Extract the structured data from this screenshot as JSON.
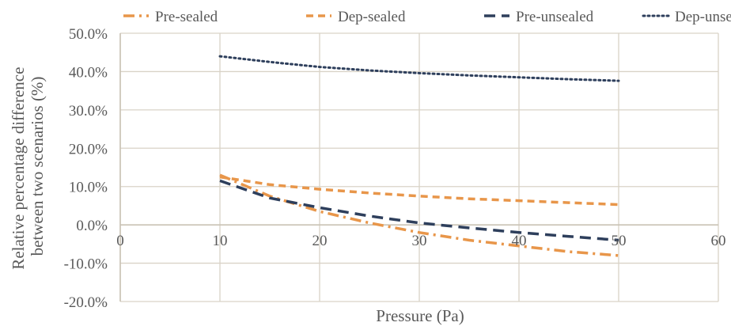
{
  "chart_data": {
    "type": "line",
    "xlabel": "Pressure (Pa)",
    "ylabel_lines": [
      "Relative percentage difference",
      "between two scenarios (%)"
    ],
    "xlim": [
      0,
      60
    ],
    "ylim": [
      -20,
      50
    ],
    "x_ticks": [
      0,
      10,
      20,
      30,
      40,
      50,
      60
    ],
    "y_ticks": [
      -20,
      -10,
      0,
      10,
      20,
      30,
      40,
      50
    ],
    "x_tick_labels": [
      "0",
      "10",
      "20",
      "30",
      "40",
      "50",
      "60"
    ],
    "y_tick_labels": [
      "-20.0%",
      "-10.0%",
      "0.0%",
      "10.0%",
      "20.0%",
      "30.0%",
      "40.0%",
      "50.0%"
    ],
    "grid": true,
    "legend_position": "top",
    "series": [
      {
        "name": "Pre-sealed",
        "color": "#e8964a",
        "dash": "dash-dot",
        "x": [
          10,
          15,
          20,
          25,
          30,
          35,
          40,
          45,
          50
        ],
        "y": [
          13.0,
          7.5,
          3.5,
          0.5,
          -2.0,
          -4.0,
          -5.5,
          -7.0,
          -8.0
        ]
      },
      {
        "name": "Dep-sealed",
        "color": "#e8964a",
        "dash": "dash",
        "x": [
          10,
          15,
          20,
          25,
          30,
          35,
          40,
          45,
          50
        ],
        "y": [
          12.5,
          10.5,
          9.3,
          8.3,
          7.5,
          6.8,
          6.3,
          5.8,
          5.3
        ]
      },
      {
        "name": "Pre-unsealed",
        "color": "#2e3f5c",
        "dash": "long-dash",
        "x": [
          10,
          15,
          20,
          25,
          30,
          35,
          40,
          45,
          50
        ],
        "y": [
          11.5,
          7.0,
          4.5,
          2.3,
          0.5,
          -0.8,
          -2.0,
          -3.0,
          -4.0
        ]
      },
      {
        "name": "Dep-unsealed",
        "color": "#2e3f5c",
        "dash": "dot",
        "x": [
          10,
          15,
          20,
          25,
          30,
          35,
          40,
          45,
          50
        ],
        "y": [
          44.0,
          42.5,
          41.2,
          40.3,
          39.6,
          39.0,
          38.5,
          38.0,
          37.6
        ]
      }
    ]
  }
}
